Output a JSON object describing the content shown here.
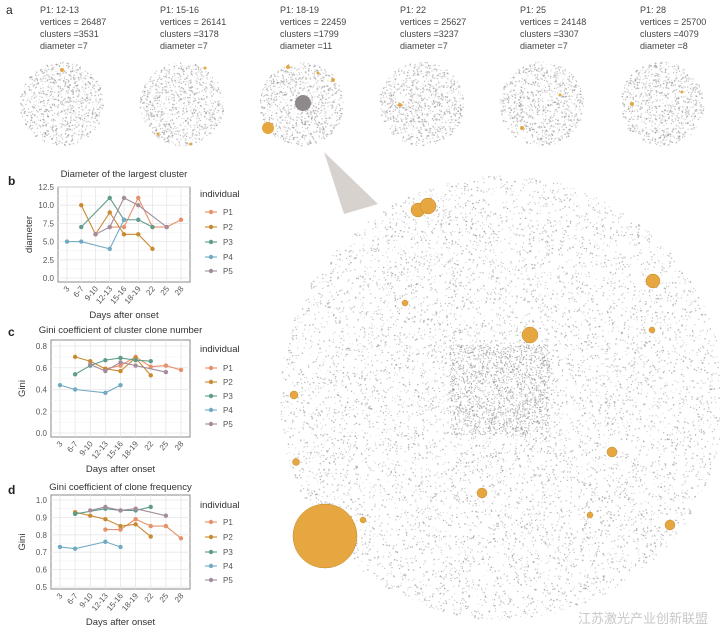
{
  "panel_a": {
    "letter": "a",
    "snapshots": [
      {
        "label": "P1: 12-13",
        "vertices": "vertices = 26487",
        "clusters": "clusters =3531",
        "diameter": "diameter =7"
      },
      {
        "label": "P1: 15-16",
        "vertices": "vertices = 26141",
        "clusters": "clusters =3178",
        "diameter": "diameter =7"
      },
      {
        "label": "P1: 18-19",
        "vertices": "vertices = 22459",
        "clusters": "clusters =1799",
        "diameter": "diameter =11"
      },
      {
        "label": "P1: 22",
        "vertices": "vertices = 25627",
        "clusters": "clusters =3237",
        "diameter": "diameter =7"
      },
      {
        "label": "P1: 25",
        "vertices": "vertices = 24148",
        "clusters": "clusters =3307",
        "diameter": "diameter =7"
      },
      {
        "label": "P1: 28",
        "vertices": "vertices = 25700",
        "clusters": "clusters =4079",
        "diameter": "diameter =8"
      }
    ],
    "node_color": "#9a9494",
    "highlight_color": "#e6a640"
  },
  "watermark": "江苏激光产业创新联盟",
  "colors": {
    "P1": "#e8906a",
    "P2": "#c98a32",
    "P3": "#5f9c8c",
    "P4": "#72aac4",
    "P5": "#a48c9c"
  },
  "chart_data": [
    {
      "letter": "b",
      "type": "line",
      "title": "Diameter of the largest cluster",
      "xlabel": "Days after onset",
      "ylabel": "diameter",
      "ylim": [
        0,
        12.5
      ],
      "yticks": [
        "0.0",
        "2.5",
        "5.0",
        "7.5",
        "10.0",
        "12.5"
      ],
      "ytick_values": [
        0,
        2.5,
        5,
        7.5,
        10,
        12.5
      ],
      "categories": [
        "3",
        "6-7",
        "9-10",
        "12-13",
        "15-16",
        "18-19",
        "22",
        "25",
        "28"
      ],
      "legend_title": "individual",
      "legend_position": "right",
      "grid": true,
      "series": [
        {
          "name": "P1",
          "values": [
            null,
            null,
            null,
            7,
            7,
            11,
            7,
            7,
            8
          ]
        },
        {
          "name": "P2",
          "values": [
            null,
            10,
            6,
            9,
            6,
            6,
            4,
            null,
            null
          ]
        },
        {
          "name": "P3",
          "values": [
            null,
            7,
            null,
            11,
            8,
            8,
            7,
            null,
            null
          ]
        },
        {
          "name": "P4",
          "values": [
            5,
            5,
            null,
            4,
            8,
            null,
            null,
            null,
            null
          ]
        },
        {
          "name": "P5",
          "values": [
            null,
            null,
            6,
            7,
            11,
            10,
            null,
            7,
            null
          ]
        }
      ]
    },
    {
      "letter": "c",
      "type": "line",
      "title": "Gini coefficient of cluster clone number",
      "xlabel": "Days after onset",
      "ylabel": "Gini",
      "ylim": [
        0,
        0.8
      ],
      "yticks": [
        "0.0",
        "0.2",
        "0.4",
        "0.6",
        "0.8"
      ],
      "ytick_values": [
        0,
        0.2,
        0.4,
        0.6,
        0.8
      ],
      "categories": [
        "3",
        "6-7",
        "9-10",
        "12-13",
        "15-16",
        "18-19",
        "22",
        "25",
        "28"
      ],
      "legend_title": "individual",
      "legend_position": "right",
      "grid": true,
      "series": [
        {
          "name": "P1",
          "values": [
            null,
            null,
            null,
            0.59,
            0.62,
            0.7,
            0.61,
            0.62,
            0.58
          ]
        },
        {
          "name": "P2",
          "values": [
            null,
            0.7,
            0.66,
            0.59,
            0.57,
            0.69,
            0.53,
            null,
            null
          ]
        },
        {
          "name": "P3",
          "values": [
            null,
            0.54,
            0.62,
            0.67,
            0.69,
            0.67,
            0.66,
            null,
            null
          ]
        },
        {
          "name": "P4",
          "values": [
            0.44,
            0.4,
            null,
            0.37,
            0.44,
            null,
            null,
            null,
            null
          ]
        },
        {
          "name": "P5",
          "values": [
            null,
            null,
            0.63,
            0.57,
            0.65,
            0.62,
            null,
            0.56,
            null
          ]
        }
      ]
    },
    {
      "letter": "d",
      "type": "line",
      "title": "Gini coefficient of clone frequency",
      "xlabel": "Days after onset",
      "ylabel": "Gini",
      "ylim": [
        0.5,
        1.0
      ],
      "yticks": [
        "0.5",
        "0.6",
        "0.7",
        "0.8",
        "0.9",
        "1.0"
      ],
      "ytick_values": [
        0.5,
        0.6,
        0.7,
        0.8,
        0.9,
        1.0
      ],
      "categories": [
        "3",
        "6-7",
        "9-10",
        "12-13",
        "15-16",
        "18-19",
        "22",
        "25",
        "28"
      ],
      "legend_title": "individual",
      "legend_position": "right",
      "grid": true,
      "series": [
        {
          "name": "P1",
          "values": [
            null,
            null,
            null,
            0.83,
            0.83,
            0.89,
            0.85,
            0.85,
            0.78
          ]
        },
        {
          "name": "P2",
          "values": [
            null,
            0.93,
            0.91,
            0.89,
            0.85,
            0.86,
            0.79,
            null,
            null
          ]
        },
        {
          "name": "P3",
          "values": [
            null,
            0.92,
            null,
            0.95,
            0.94,
            0.94,
            0.96,
            null,
            null
          ]
        },
        {
          "name": "P4",
          "values": [
            0.73,
            0.72,
            null,
            0.76,
            0.73,
            null,
            null,
            null,
            null
          ]
        },
        {
          "name": "P5",
          "values": [
            null,
            null,
            0.94,
            0.96,
            0.94,
            0.95,
            null,
            0.91,
            null
          ]
        }
      ]
    }
  ]
}
